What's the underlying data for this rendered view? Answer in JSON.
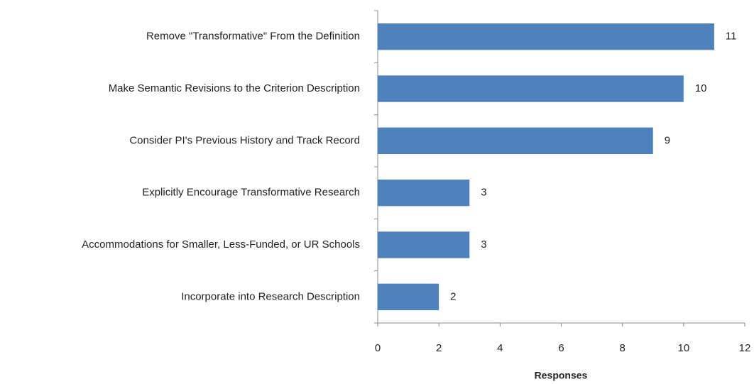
{
  "chart_data": {
    "type": "barh",
    "categories": [
      "Remove \"Transformative\" From the Definition",
      "Make Semantic Revisions to the Criterion Description",
      "Consider PI's Previous History and Track Record",
      "Explicitly Encourage Transformative Research",
      "Accommodations for Smaller, Less-Funded, or UR Schools",
      "Incorporate into Research Description"
    ],
    "values": [
      11,
      10,
      9,
      3,
      3,
      2
    ],
    "color": "#4f81bd",
    "xlabel": "Responses",
    "xlim": [
      0,
      12
    ],
    "xticks": [
      0,
      2,
      4,
      6,
      8,
      10,
      12
    ],
    "grid": false
  }
}
